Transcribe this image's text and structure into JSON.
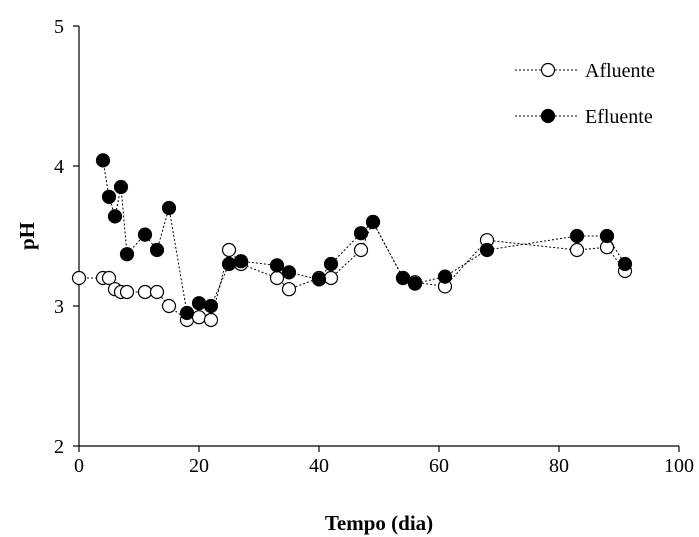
{
  "chart_data": {
    "type": "scatter",
    "xlabel": "Tempo (dia)",
    "ylabel": "pH",
    "xlim": [
      0,
      100
    ],
    "ylim": [
      2,
      5
    ],
    "xticks": [
      "0",
      "20",
      "40",
      "60",
      "80",
      "100"
    ],
    "yticks": [
      "2",
      "3",
      "4",
      "5"
    ],
    "grid": false,
    "legend_position": "top-right",
    "series": [
      {
        "name": "Afluente",
        "marker": "open-circle",
        "line": "dotted",
        "color": "#000000",
        "x": [
          0,
          4,
          5,
          6,
          7,
          8,
          11,
          13,
          15,
          18,
          20,
          22,
          25,
          27,
          33,
          35,
          40,
          42,
          47,
          49,
          54,
          56,
          61,
          68,
          83,
          88,
          91
        ],
        "y": [
          3.2,
          3.2,
          3.2,
          3.12,
          3.1,
          3.1,
          3.1,
          3.1,
          3.0,
          2.9,
          2.92,
          2.9,
          3.4,
          3.3,
          3.2,
          3.12,
          3.2,
          3.2,
          3.4,
          3.6,
          3.2,
          3.17,
          3.14,
          3.47,
          3.4,
          3.42,
          3.25
        ]
      },
      {
        "name": "Efluente",
        "marker": "filled-circle",
        "line": "dotted",
        "color": "#000000",
        "x": [
          4,
          5,
          6,
          7,
          8,
          11,
          13,
          15,
          18,
          20,
          22,
          25,
          27,
          33,
          35,
          40,
          42,
          47,
          49,
          54,
          56,
          61,
          68,
          83,
          88,
          91
        ],
        "y": [
          4.04,
          3.78,
          3.64,
          3.85,
          3.37,
          3.51,
          3.4,
          3.7,
          2.95,
          3.02,
          3.0,
          3.3,
          3.32,
          3.29,
          3.24,
          3.19,
          3.3,
          3.52,
          3.6,
          3.2,
          3.16,
          3.21,
          3.4,
          3.5,
          3.5,
          3.3
        ]
      }
    ]
  }
}
